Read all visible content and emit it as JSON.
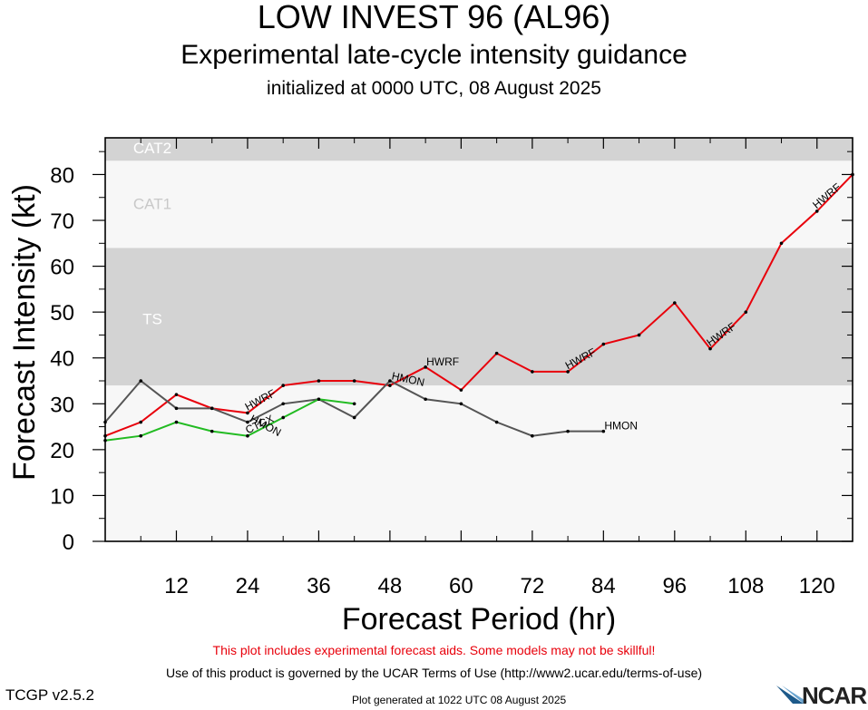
{
  "header": {
    "title": "LOW INVEST 96 (AL96)",
    "subtitle": "Experimental late-cycle intensity guidance",
    "init": "initialized at 0000 UTC, 08 August 2025"
  },
  "footer": {
    "warning": "This plot includes experimental forecast aids. Some models may not be skillful!",
    "terms": "Use of this product is governed by the UCAR Terms of Use (http://www2.ucar.edu/terms-of-use)",
    "version": "TCGP v2.5.2",
    "generated": "Plot generated at 1022 UTC   08 August 2025",
    "logo": "NCAR"
  },
  "chart_data": {
    "type": "line",
    "title": "",
    "xlabel": "Forecast Period (hr)",
    "ylabel": "Forecast Intensity (kt)",
    "xlim": [
      0,
      126
    ],
    "ylim": [
      0,
      88
    ],
    "xticks": [
      12,
      24,
      36,
      48,
      60,
      72,
      84,
      96,
      108,
      120
    ],
    "yticks": [
      0,
      10,
      20,
      30,
      40,
      50,
      60,
      70,
      80
    ],
    "grid": false,
    "bands": [
      {
        "label": "TS",
        "from": 34,
        "to": 64,
        "color": "#d3d3d3"
      },
      {
        "label": "CAT1",
        "from": 64,
        "to": 83,
        "color": "#f7f7f7"
      },
      {
        "label": "CAT2",
        "from": 83,
        "to": 96,
        "color": "#d3d3d3"
      }
    ],
    "below_band_color": "#f7f7f7",
    "series": [
      {
        "name": "HWRF",
        "color": "#e8000b",
        "x": [
          0,
          6,
          12,
          18,
          24,
          30,
          36,
          42,
          48,
          54,
          60,
          66,
          72,
          78,
          84,
          90,
          96,
          102,
          108,
          114,
          120,
          126
        ],
        "y": [
          23,
          26,
          32,
          29,
          28,
          34,
          35,
          35,
          34,
          38,
          33,
          41,
          37,
          37,
          43,
          45,
          52,
          42,
          50,
          65,
          72,
          80
        ]
      },
      {
        "name": "HMON",
        "color": "#555555",
        "x": [
          0,
          6,
          12,
          18,
          24,
          30,
          36,
          42,
          48,
          54,
          60,
          66,
          72,
          78,
          84
        ],
        "y": [
          26,
          35,
          29,
          29,
          26,
          30,
          31,
          27,
          35,
          31,
          30,
          26,
          23,
          24,
          24
        ]
      },
      {
        "name": "CTCX",
        "color": "#22bb22",
        "x": [
          0,
          6,
          12,
          18,
          24,
          30,
          36,
          42
        ],
        "y": [
          22,
          23,
          26,
          24,
          23,
          27,
          31,
          30
        ]
      }
    ],
    "annotations": [
      {
        "text": "HWRF",
        "series": 0,
        "x": 24,
        "y": 28,
        "angle": -28
      },
      {
        "text": "HWRF",
        "series": 0,
        "x": 54,
        "y": 38,
        "angle": 0
      },
      {
        "text": "HWRF",
        "series": 0,
        "x": 78,
        "y": 37,
        "angle": -28
      },
      {
        "text": "HWRF",
        "series": 0,
        "x": 102,
        "y": 42,
        "angle": -35
      },
      {
        "text": "HWRF",
        "series": 0,
        "x": 120,
        "y": 72,
        "angle": -40
      },
      {
        "text": "HMON",
        "series": 1,
        "x": 24,
        "y": 26,
        "angle": 28
      },
      {
        "text": "HMON",
        "series": 1,
        "x": 48,
        "y": 35,
        "angle": 12
      },
      {
        "text": "HMON",
        "series": 1,
        "x": 84,
        "y": 24,
        "angle": 0
      },
      {
        "text": "CTCX",
        "series": 2,
        "x": 24,
        "y": 23,
        "angle": -25
      }
    ]
  }
}
